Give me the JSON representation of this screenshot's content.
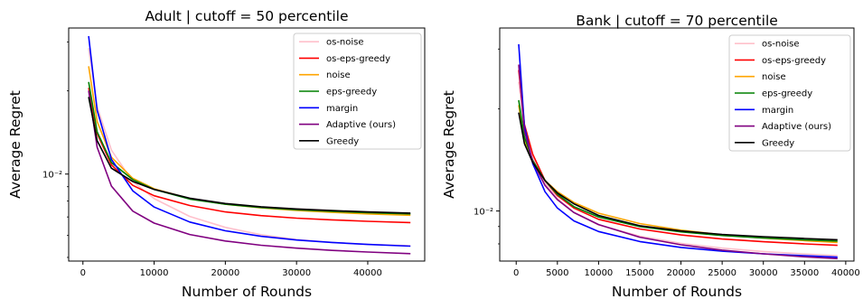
{
  "chart_data": [
    {
      "type": "line",
      "title": "Adult | cutoff = 50 percentile",
      "xlabel": "Number of Rounds",
      "ylabel": "Average Regret",
      "yscale": "log",
      "xlim": [
        -2000,
        48000
      ],
      "ylim": [
        0.00485,
        0.0337
      ],
      "xticks": [
        0,
        10000,
        20000,
        30000,
        40000
      ],
      "xtick_labels": [
        "0",
        "10000",
        "20000",
        "30000",
        "40000"
      ],
      "yticks": [
        0.01
      ],
      "ytick_labels": [
        "10⁻²"
      ],
      "grid": false,
      "legend_position": "upper right",
      "series": [
        {
          "name": "os-noise",
          "color": "#ffc0cb",
          "x": [
            800,
            2000,
            4000,
            7000,
            10000,
            15000,
            20000,
            25000,
            30000,
            35000,
            40000,
            46000
          ],
          "y": [
            0.0285,
            0.0175,
            0.0122,
            0.0094,
            0.00815,
            0.00703,
            0.00642,
            0.00604,
            0.0058,
            0.00566,
            0.00557,
            0.00551
          ]
        },
        {
          "name": "os-eps-greedy",
          "color": "#ff0000",
          "x": [
            800,
            2000,
            4000,
            7000,
            10000,
            15000,
            20000,
            25000,
            30000,
            35000,
            40000,
            46000
          ],
          "y": [
            0.0205,
            0.014,
            0.0108,
            0.0091,
            0.00835,
            0.0077,
            0.0073,
            0.00708,
            0.00693,
            0.00683,
            0.00675,
            0.00668
          ]
        },
        {
          "name": "noise",
          "color": "#ffa500",
          "x": [
            800,
            2000,
            4000,
            7000,
            10000,
            15000,
            20000,
            25000,
            30000,
            35000,
            40000,
            46000
          ],
          "y": [
            0.0245,
            0.0155,
            0.0115,
            0.00965,
            0.00885,
            0.00815,
            0.00778,
            0.00755,
            0.00739,
            0.00727,
            0.00718,
            0.0071
          ]
        },
        {
          "name": "eps-greedy",
          "color": "#008000",
          "x": [
            800,
            2000,
            4000,
            7000,
            10000,
            15000,
            20000,
            25000,
            30000,
            35000,
            40000,
            46000
          ],
          "y": [
            0.0215,
            0.0142,
            0.011,
            0.00955,
            0.0088,
            0.00812,
            0.00778,
            0.00757,
            0.00743,
            0.00733,
            0.00725,
            0.00718
          ]
        },
        {
          "name": "margin",
          "color": "#0000ff",
          "x": [
            800,
            2000,
            4000,
            7000,
            10000,
            15000,
            20000,
            25000,
            30000,
            35000,
            40000,
            46000
          ],
          "y": [
            0.0315,
            0.017,
            0.0113,
            0.0087,
            0.0076,
            0.00671,
            0.00624,
            0.00596,
            0.00578,
            0.00566,
            0.00557,
            0.00549
          ]
        },
        {
          "name": "Adaptive (ours)",
          "color": "#800080",
          "x": [
            800,
            2000,
            4000,
            7000,
            10000,
            15000,
            20000,
            25000,
            30000,
            35000,
            40000,
            46000
          ],
          "y": [
            0.02,
            0.0125,
            0.00905,
            0.00735,
            0.00665,
            0.00605,
            0.00573,
            0.00553,
            0.0054,
            0.0053,
            0.00523,
            0.00516
          ]
        },
        {
          "name": "Greedy",
          "color": "#000000",
          "x": [
            800,
            2000,
            4000,
            7000,
            10000,
            15000,
            20000,
            25000,
            30000,
            35000,
            40000,
            46000
          ],
          "y": [
            0.019,
            0.0132,
            0.0105,
            0.0094,
            0.0088,
            0.00818,
            0.00783,
            0.00762,
            0.00748,
            0.00738,
            0.0073,
            0.00723
          ]
        }
      ]
    },
    {
      "type": "line",
      "title": "Bank | cutoff = 70 percentile",
      "xlabel": "Number of Rounds",
      "ylabel": "Average Regret",
      "yscale": "log",
      "xlim": [
        -2000,
        41000
      ],
      "ylim": [
        0.00712,
        0.0346
      ],
      "xticks": [
        0,
        5000,
        10000,
        15000,
        20000,
        25000,
        30000,
        35000,
        40000
      ],
      "xtick_labels": [
        "0",
        "5000",
        "10000",
        "15000",
        "20000",
        "25000",
        "30000",
        "35000",
        "40000"
      ],
      "yticks": [
        0.01
      ],
      "ytick_labels": [
        "10⁻²"
      ],
      "grid": false,
      "legend_position": "upper right",
      "series": [
        {
          "name": "os-noise",
          "color": "#ffc0cb",
          "x": [
            300,
            1000,
            2000,
            3500,
            5000,
            7000,
            10000,
            15000,
            20000,
            25000,
            30000,
            35000,
            39000
          ],
          "y": [
            0.024,
            0.0176,
            0.0145,
            0.0121,
            0.0109,
            0.0099,
            0.0091,
            0.00843,
            0.00803,
            0.00777,
            0.0076,
            0.00747,
            0.00738
          ]
        },
        {
          "name": "os-eps-greedy",
          "color": "#ff0000",
          "x": [
            300,
            1000,
            2000,
            3500,
            5000,
            7000,
            10000,
            15000,
            20000,
            25000,
            30000,
            35000,
            39000
          ],
          "y": [
            0.026,
            0.018,
            0.0147,
            0.0123,
            0.0111,
            0.0102,
            0.00945,
            0.00885,
            0.0085,
            0.00827,
            0.00812,
            0.008,
            0.00792
          ]
        },
        {
          "name": "noise",
          "color": "#ffa500",
          "x": [
            300,
            1000,
            2000,
            3500,
            5000,
            7000,
            10000,
            15000,
            20000,
            25000,
            30000,
            35000,
            39000
          ],
          "y": [
            0.0205,
            0.016,
            0.0139,
            0.0123,
            0.0114,
            0.0106,
            0.00985,
            0.00918,
            0.00878,
            0.00851,
            0.00832,
            0.00818,
            0.00808
          ]
        },
        {
          "name": "eps-greedy",
          "color": "#008000",
          "x": [
            300,
            1000,
            2000,
            3500,
            5000,
            7000,
            10000,
            15000,
            20000,
            25000,
            30000,
            35000,
            39000
          ],
          "y": [
            0.0212,
            0.0165,
            0.0141,
            0.0123,
            0.0112,
            0.0103,
            0.0096,
            0.009,
            0.00868,
            0.00847,
            0.00833,
            0.00822,
            0.00815
          ]
        },
        {
          "name": "margin",
          "color": "#0000ff",
          "x": [
            300,
            1000,
            2000,
            3500,
            5000,
            7000,
            10000,
            15000,
            20000,
            25000,
            30000,
            35000,
            39000
          ],
          "y": [
            0.031,
            0.0178,
            0.0138,
            0.0114,
            0.0102,
            0.00935,
            0.0087,
            0.00813,
            0.00781,
            0.00761,
            0.00748,
            0.00738,
            0.00731
          ]
        },
        {
          "name": "Adaptive (ours)",
          "color": "#800080",
          "x": [
            300,
            1000,
            2000,
            3500,
            5000,
            7000,
            10000,
            15000,
            20000,
            25000,
            30000,
            35000,
            39000
          ],
          "y": [
            0.027,
            0.0172,
            0.014,
            0.0119,
            0.0108,
            0.0099,
            0.00912,
            0.00837,
            0.00795,
            0.00767,
            0.00748,
            0.00733,
            0.00724
          ]
        },
        {
          "name": "Greedy",
          "color": "#000000",
          "x": [
            300,
            1000,
            2000,
            3500,
            5000,
            7000,
            10000,
            15000,
            20000,
            25000,
            30000,
            35000,
            39000
          ],
          "y": [
            0.0195,
            0.0158,
            0.0139,
            0.0123,
            0.0113,
            0.0105,
            0.0097,
            0.00905,
            0.00873,
            0.00853,
            0.0084,
            0.0083,
            0.00823
          ]
        }
      ]
    }
  ]
}
